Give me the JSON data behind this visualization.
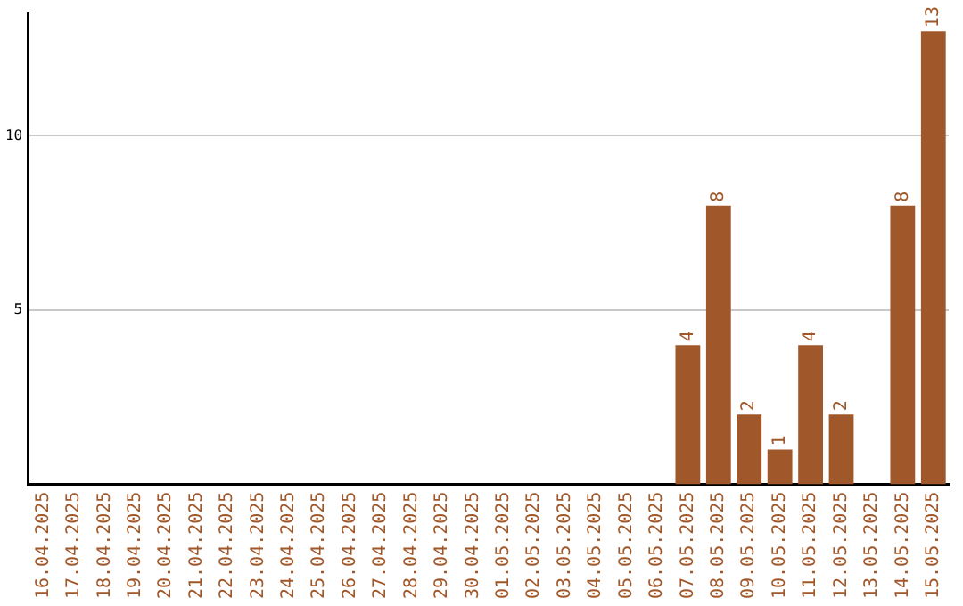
{
  "chart_data": {
    "type": "bar",
    "categories": [
      "16.04.2025",
      "17.04.2025",
      "18.04.2025",
      "19.04.2025",
      "20.04.2025",
      "21.04.2025",
      "22.04.2025",
      "23.04.2025",
      "24.04.2025",
      "25.04.2025",
      "26.04.2025",
      "27.04.2025",
      "28.04.2025",
      "29.04.2025",
      "30.04.2025",
      "01.05.2025",
      "02.05.2025",
      "03.05.2025",
      "04.05.2025",
      "05.05.2025",
      "06.05.2025",
      "07.05.2025",
      "08.05.2025",
      "09.05.2025",
      "10.05.2025",
      "11.05.2025",
      "12.05.2025",
      "13.05.2025",
      "14.05.2025",
      "15.05.2025"
    ],
    "values": [
      0,
      0,
      0,
      0,
      0,
      0,
      0,
      0,
      0,
      0,
      0,
      0,
      0,
      0,
      0,
      0,
      0,
      0,
      0,
      0,
      0,
      4,
      8,
      2,
      1,
      4,
      2,
      0,
      8,
      13
    ],
    "value_labels": [
      null,
      null,
      null,
      null,
      null,
      null,
      null,
      null,
      null,
      null,
      null,
      null,
      null,
      null,
      null,
      null,
      null,
      null,
      null,
      null,
      null,
      "4",
      "8",
      "2",
      "1",
      "4",
      "2",
      null,
      "8",
      "13"
    ],
    "color": "#a0582a",
    "ylim": [
      0,
      13.5
    ],
    "yticks": [
      5,
      10
    ],
    "grid": "y",
    "legend": false
  }
}
